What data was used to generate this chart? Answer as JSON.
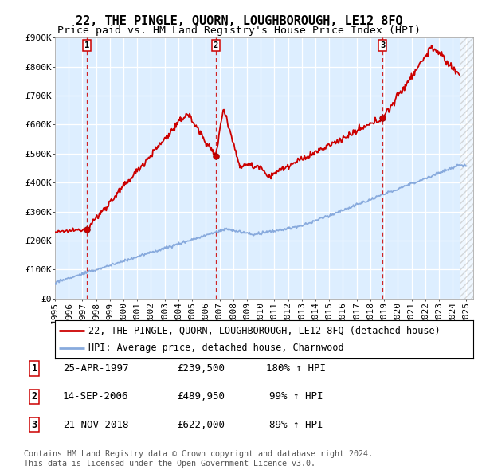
{
  "title": "22, THE PINGLE, QUORN, LOUGHBOROUGH, LE12 8FQ",
  "subtitle": "Price paid vs. HM Land Registry's House Price Index (HPI)",
  "background_color": "#ddeeff",
  "ylim": [
    0,
    900000
  ],
  "yticks": [
    0,
    100000,
    200000,
    300000,
    400000,
    500000,
    600000,
    700000,
    800000,
    900000
  ],
  "ytick_labels": [
    "£0",
    "£100K",
    "£200K",
    "£300K",
    "£400K",
    "£500K",
    "£600K",
    "£700K",
    "£800K",
    "£900K"
  ],
  "xlim_start": 1995.0,
  "xlim_end": 2025.5,
  "xtick_years": [
    1995,
    1996,
    1997,
    1998,
    1999,
    2000,
    2001,
    2002,
    2003,
    2004,
    2005,
    2006,
    2007,
    2008,
    2009,
    2010,
    2011,
    2012,
    2013,
    2014,
    2015,
    2016,
    2017,
    2018,
    2019,
    2020,
    2021,
    2022,
    2023,
    2024,
    2025
  ],
  "sale_dates": [
    1997.32,
    2006.71,
    2018.9
  ],
  "sale_prices": [
    239500,
    489950,
    622000
  ],
  "sale_labels": [
    "1",
    "2",
    "3"
  ],
  "property_line_color": "#cc0000",
  "hpi_line_color": "#88aadd",
  "vline_color": "#cc0000",
  "hatch_start": 2024.5,
  "legend_items": [
    "22, THE PINGLE, QUORN, LOUGHBOROUGH, LE12 8FQ (detached house)",
    "HPI: Average price, detached house, Charnwood"
  ],
  "table_rows": [
    [
      "1",
      "25-APR-1997",
      "£239,500",
      "180% ↑ HPI"
    ],
    [
      "2",
      "14-SEP-2006",
      "£489,950",
      "99% ↑ HPI"
    ],
    [
      "3",
      "21-NOV-2018",
      "£622,000",
      "89% ↑ HPI"
    ]
  ],
  "footnote": "Contains HM Land Registry data © Crown copyright and database right 2024.\nThis data is licensed under the Open Government Licence v3.0.",
  "title_fontsize": 11,
  "subtitle_fontsize": 9.5,
  "tick_fontsize": 8,
  "legend_fontsize": 8.5,
  "table_fontsize": 9
}
